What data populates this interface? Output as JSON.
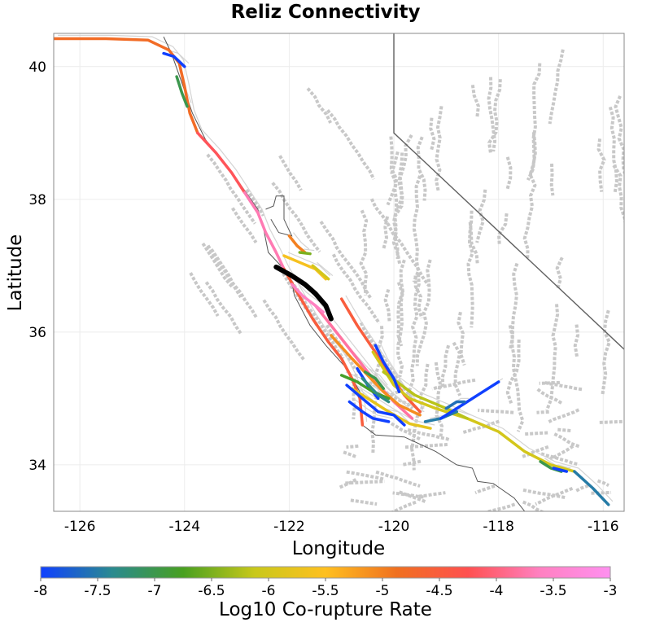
{
  "title": "Reliz Connectivity",
  "x_axis": {
    "label": "Longitude",
    "range": [
      -126.5,
      -115.6
    ],
    "ticks": [
      -126,
      -124,
      -122,
      -120,
      -118,
      -116
    ]
  },
  "y_axis": {
    "label": "Latitude",
    "range": [
      33.3,
      40.5
    ],
    "ticks": [
      34,
      36,
      38,
      40
    ]
  },
  "colorbar": {
    "label": "Log10 Co-rupture Rate",
    "range": [
      -8,
      -3
    ],
    "ticks": [
      "-8",
      "-7.5",
      "-7",
      "-6.5",
      "-6",
      "-5.5",
      "-5",
      "-4.5",
      "-4",
      "-3.5",
      "-3"
    ],
    "stops": [
      "#1040ff",
      "#2a8a90",
      "#48a020",
      "#c8c81a",
      "#ffc020",
      "#f07020",
      "#ff5050",
      "#ff80c0",
      "#ff90f0"
    ]
  },
  "colors": {
    "background_fault": "#c8c8c8",
    "coastline": "#555555",
    "state_border": "#606060",
    "selected_fault": "#000000"
  },
  "map_data": {
    "selected_fault": {
      "name": "Reliz",
      "path": [
        [
          -122.25,
          36.98
        ],
        [
          -121.95,
          36.85
        ],
        [
          -121.7,
          36.72
        ],
        [
          -121.5,
          36.58
        ],
        [
          -121.3,
          36.4
        ],
        [
          -121.2,
          36.2
        ]
      ]
    },
    "colored_faults": [
      {
        "log_rate": -4.8,
        "path": [
          [
            -126.5,
            40.42
          ],
          [
            -125.5,
            40.42
          ],
          [
            -124.7,
            40.4
          ],
          [
            -124.3,
            40.25
          ],
          [
            -124.1,
            40.05
          ],
          [
            -124.0,
            39.7
          ],
          [
            -123.9,
            39.3
          ],
          [
            -123.75,
            39.0
          ]
        ]
      },
      {
        "log_rate": -4.2,
        "path": [
          [
            -123.75,
            39.0
          ],
          [
            -123.4,
            38.7
          ],
          [
            -123.1,
            38.4
          ],
          [
            -122.85,
            38.1
          ]
        ]
      },
      {
        "log_rate": -3.7,
        "path": [
          [
            -122.85,
            38.1
          ],
          [
            -122.6,
            37.8
          ],
          [
            -122.45,
            37.5
          ],
          [
            -122.25,
            37.2
          ],
          [
            -122.1,
            36.95
          ]
        ]
      },
      {
        "log_rate": -4.5,
        "path": [
          [
            -122.1,
            36.95
          ],
          [
            -121.85,
            36.6
          ],
          [
            -121.55,
            36.2
          ],
          [
            -121.25,
            35.85
          ],
          [
            -121.0,
            35.6
          ],
          [
            -120.8,
            35.3
          ],
          [
            -120.65,
            35.0
          ],
          [
            -120.6,
            34.6
          ]
        ]
      },
      {
        "log_rate": -3.8,
        "path": [
          [
            -121.5,
            36.4
          ],
          [
            -121.0,
            35.9
          ],
          [
            -120.7,
            35.6
          ],
          [
            -120.35,
            35.25
          ],
          [
            -120.0,
            34.95
          ],
          [
            -119.65,
            34.7
          ]
        ]
      },
      {
        "log_rate": -4.5,
        "path": [
          [
            -121.0,
            36.5
          ],
          [
            -120.7,
            36.1
          ],
          [
            -120.4,
            35.75
          ],
          [
            -120.1,
            35.4
          ],
          [
            -119.8,
            35.05
          ],
          [
            -119.5,
            34.8
          ]
        ]
      },
      {
        "log_rate": -5.1,
        "path": [
          [
            -121.2,
            35.95
          ],
          [
            -120.8,
            35.6
          ],
          [
            -120.5,
            35.35
          ],
          [
            -120.2,
            35.1
          ],
          [
            -119.9,
            34.9
          ],
          [
            -119.5,
            34.75
          ]
        ]
      },
      {
        "log_rate": -6.0,
        "path": [
          [
            -120.4,
            35.7
          ],
          [
            -120.0,
            35.2
          ],
          [
            -119.7,
            35.0
          ],
          [
            -119.2,
            34.85
          ],
          [
            -118.6,
            34.7
          ],
          [
            -118.0,
            34.5
          ],
          [
            -117.5,
            34.2
          ],
          [
            -117.0,
            34.0
          ],
          [
            -116.55,
            33.9
          ]
        ]
      },
      {
        "log_rate": -7.5,
        "path": [
          [
            -116.55,
            33.9
          ],
          [
            -116.2,
            33.65
          ],
          [
            -115.9,
            33.4
          ]
        ]
      },
      {
        "log_rate": -6.2,
        "path": [
          [
            -120.2,
            35.4
          ],
          [
            -119.6,
            35.05
          ],
          [
            -119.0,
            34.85
          ],
          [
            -118.6,
            34.7
          ]
        ]
      },
      {
        "log_rate": -5.8,
        "path": [
          [
            -120.8,
            35.15
          ],
          [
            -120.5,
            35.0
          ],
          [
            -120.1,
            34.8
          ],
          [
            -119.7,
            34.62
          ],
          [
            -119.3,
            34.55
          ]
        ]
      },
      {
        "log_rate": -8.0,
        "path": [
          [
            -120.35,
            35.8
          ],
          [
            -120.2,
            35.55
          ],
          [
            -120.0,
            35.3
          ],
          [
            -119.9,
            35.1
          ]
        ]
      },
      {
        "log_rate": -8.0,
        "path": [
          [
            -120.9,
            35.2
          ],
          [
            -120.6,
            35.0
          ],
          [
            -120.3,
            34.8
          ],
          [
            -120.0,
            34.75
          ],
          [
            -119.8,
            34.6
          ]
        ]
      },
      {
        "log_rate": -8.0,
        "path": [
          [
            -120.7,
            35.45
          ],
          [
            -120.5,
            35.2
          ],
          [
            -120.3,
            35.0
          ]
        ]
      },
      {
        "log_rate": -8.0,
        "path": [
          [
            -120.85,
            34.95
          ],
          [
            -120.6,
            34.8
          ],
          [
            -120.4,
            34.7
          ],
          [
            -120.1,
            34.65
          ]
        ]
      },
      {
        "log_rate": -7.5,
        "path": [
          [
            -119.4,
            34.65
          ],
          [
            -119.1,
            34.7
          ],
          [
            -118.8,
            34.8
          ]
        ]
      },
      {
        "log_rate": -8.0,
        "path": [
          [
            -119.1,
            34.7
          ],
          [
            -118.7,
            34.9
          ],
          [
            -118.3,
            35.1
          ],
          [
            -118.0,
            35.25
          ]
        ]
      },
      {
        "log_rate": -7.6,
        "path": [
          [
            -119.0,
            34.85
          ],
          [
            -118.8,
            34.95
          ],
          [
            -118.65,
            34.95
          ]
        ]
      },
      {
        "log_rate": -6.8,
        "path": [
          [
            -121.0,
            35.35
          ],
          [
            -120.7,
            35.25
          ],
          [
            -120.4,
            35.1
          ],
          [
            -120.1,
            35.0
          ]
        ]
      },
      {
        "log_rate": -7.3,
        "path": [
          [
            -120.6,
            35.3
          ],
          [
            -120.3,
            35.05
          ],
          [
            -120.1,
            34.95
          ]
        ]
      },
      {
        "log_rate": -7.0,
        "path": [
          [
            -120.55,
            35.4
          ],
          [
            -120.35,
            35.3
          ],
          [
            -120.2,
            35.15
          ]
        ]
      },
      {
        "log_rate": -5.0,
        "path": [
          [
            -122.0,
            37.45
          ],
          [
            -121.85,
            37.3
          ],
          [
            -121.7,
            37.2
          ]
        ]
      },
      {
        "log_rate": -6.5,
        "path": [
          [
            -121.8,
            37.2
          ],
          [
            -121.6,
            37.18
          ]
        ]
      },
      {
        "log_rate": -5.6,
        "path": [
          [
            -122.1,
            37.15
          ],
          [
            -121.8,
            37.05
          ],
          [
            -121.5,
            36.95
          ],
          [
            -121.3,
            36.8
          ]
        ]
      },
      {
        "log_rate": -6.0,
        "path": [
          [
            -121.55,
            37.0
          ],
          [
            -121.4,
            36.9
          ],
          [
            -121.25,
            36.8
          ]
        ]
      },
      {
        "log_rate": -3.6,
        "path": [
          [
            -121.95,
            36.72
          ],
          [
            -121.75,
            36.55
          ],
          [
            -121.5,
            36.4
          ],
          [
            -121.35,
            36.3
          ]
        ]
      },
      {
        "log_rate": -7.0,
        "path": [
          [
            -124.15,
            39.85
          ],
          [
            -124.05,
            39.6
          ],
          [
            -123.95,
            39.4
          ]
        ]
      },
      {
        "log_rate": -8.0,
        "path": [
          [
            -124.4,
            40.2
          ],
          [
            -124.2,
            40.15
          ],
          [
            -124.0,
            40.0
          ]
        ]
      },
      {
        "log_rate": -7.0,
        "path": [
          [
            -117.2,
            34.05
          ],
          [
            -117.0,
            33.95
          ],
          [
            -116.8,
            33.9
          ]
        ]
      },
      {
        "log_rate": -8.0,
        "path": [
          [
            -116.95,
            33.95
          ],
          [
            -116.8,
            33.92
          ],
          [
            -116.7,
            33.9
          ]
        ]
      }
    ]
  }
}
